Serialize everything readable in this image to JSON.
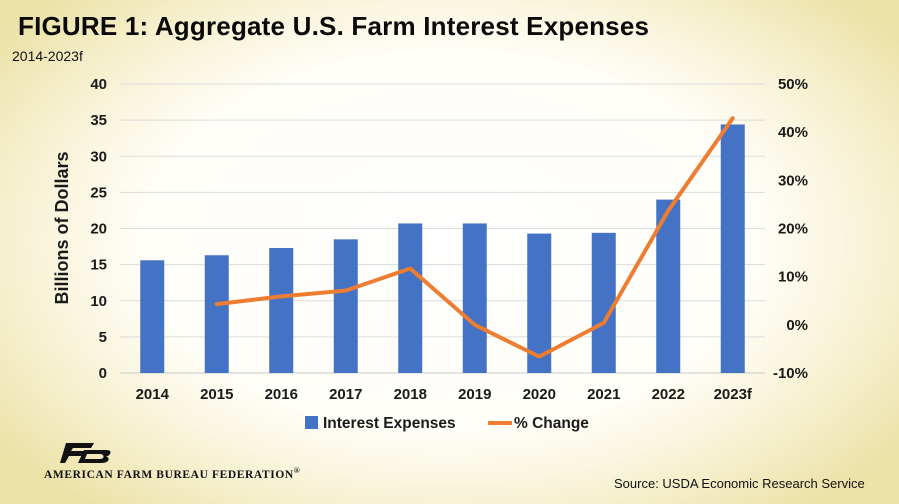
{
  "header": {
    "title": "FIGURE  1:  Aggregate U.S. Farm Interest Expenses",
    "subtitle": "2014-2023f"
  },
  "footer": {
    "logo_text": "AMERICAN FARM BUREAU FEDERATION",
    "logo_mark_text": "FB",
    "source": "Source: USDA Economic Research Service"
  },
  "chart_data": {
    "type": "bar",
    "categories": [
      "2014",
      "2015",
      "2016",
      "2017",
      "2018",
      "2019",
      "2020",
      "2021",
      "2022",
      "2023f"
    ],
    "ylabel": "Billions of Dollars",
    "ylim": [
      0,
      40
    ],
    "y_ticks": [
      "0",
      "5",
      "10",
      "15",
      "20",
      "25",
      "30",
      "35",
      "40"
    ],
    "y2lim": [
      -10,
      50
    ],
    "y2_ticks": [
      "-10%",
      "0%",
      "10%",
      "20%",
      "30%",
      "40%",
      "50%"
    ],
    "grid": true,
    "legend_position": "bottom",
    "series": [
      {
        "name": "Interest Expenses",
        "type": "bar",
        "axis": "left",
        "color": "#4472C4",
        "values": [
          15.6,
          16.3,
          17.3,
          18.5,
          20.7,
          20.7,
          19.3,
          19.4,
          24.0,
          34.4
        ]
      },
      {
        "name": "% Change",
        "type": "line",
        "axis": "right",
        "color": "#ED7D31",
        "values": [
          null,
          4.3,
          5.9,
          7.1,
          11.7,
          0.0,
          -6.6,
          0.4,
          23.7,
          42.9
        ]
      }
    ]
  }
}
